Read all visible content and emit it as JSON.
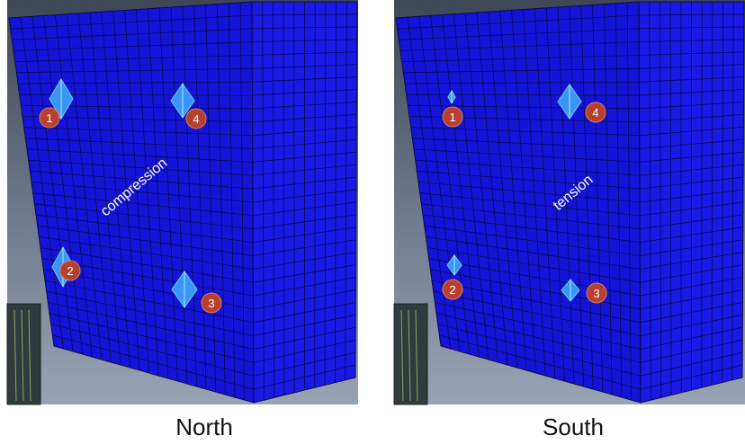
{
  "panels": [
    {
      "caption": "North",
      "label": "compression",
      "markers": [
        "1",
        "2",
        "3",
        "4"
      ]
    },
    {
      "caption": "South",
      "label": "tension",
      "markers": [
        "1",
        "2",
        "3",
        "4"
      ]
    }
  ]
}
